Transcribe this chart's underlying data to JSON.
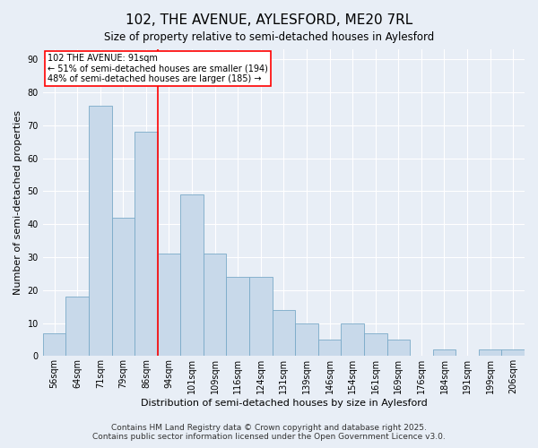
{
  "title": "102, THE AVENUE, AYLESFORD, ME20 7RL",
  "subtitle": "Size of property relative to semi-detached houses in Aylesford",
  "xlabel": "Distribution of semi-detached houses by size in Aylesford",
  "ylabel": "Number of semi-detached properties",
  "categories": [
    "56sqm",
    "64sqm",
    "71sqm",
    "79sqm",
    "86sqm",
    "94sqm",
    "101sqm",
    "109sqm",
    "116sqm",
    "124sqm",
    "131sqm",
    "139sqm",
    "146sqm",
    "154sqm",
    "161sqm",
    "169sqm",
    "176sqm",
    "184sqm",
    "191sqm",
    "199sqm",
    "206sqm"
  ],
  "values": [
    7,
    18,
    76,
    42,
    68,
    31,
    49,
    31,
    24,
    24,
    14,
    10,
    5,
    10,
    7,
    5,
    0,
    2,
    0,
    2,
    2
  ],
  "bar_color": "#c8d9ea",
  "bar_edge_color": "#7aaac8",
  "vline_x_index": 5,
  "vline_color": "red",
  "annotation_title": "102 THE AVENUE: 91sqm",
  "annotation_line1": "← 51% of semi-detached houses are smaller (194)",
  "annotation_line2": "48% of semi-detached houses are larger (185) →",
  "annotation_box_color": "white",
  "annotation_box_edge": "red",
  "footnote1": "Contains HM Land Registry data © Crown copyright and database right 2025.",
  "footnote2": "Contains public sector information licensed under the Open Government Licence v3.0.",
  "background_color": "#e8eef6",
  "plot_bg_color": "#e8eef6",
  "ylim": [
    0,
    93
  ],
  "yticks": [
    0,
    10,
    20,
    30,
    40,
    50,
    60,
    70,
    80,
    90
  ],
  "title_fontsize": 11,
  "subtitle_fontsize": 8.5,
  "axis_label_fontsize": 8,
  "tick_fontsize": 7,
  "annotation_fontsize": 7,
  "footnote_fontsize": 6.5
}
